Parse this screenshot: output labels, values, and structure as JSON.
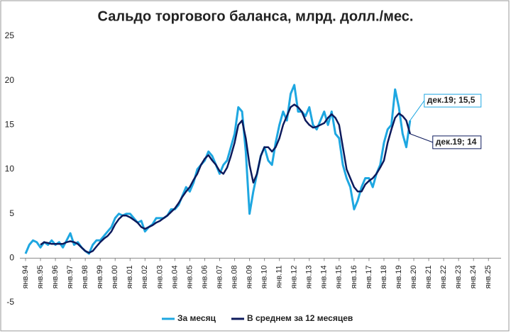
{
  "chart_data": {
    "type": "line",
    "title": "Сальдо торгового баланса, млрд. долл./мес.",
    "categories": [
      "янв.94",
      null,
      null,
      null,
      "янв.95",
      null,
      null,
      null,
      "янв.96",
      null,
      null,
      null,
      "янв.97",
      null,
      null,
      null,
      "янв.98",
      null,
      null,
      null,
      "янв.99",
      null,
      null,
      null,
      "янв.00",
      null,
      null,
      null,
      "янв.01",
      null,
      null,
      null,
      "янв.02",
      null,
      null,
      null,
      "янв.03",
      null,
      null,
      null,
      "янв.04",
      null,
      null,
      null,
      "янв.05",
      null,
      null,
      null,
      "янв.06",
      null,
      null,
      null,
      "янв.07",
      null,
      null,
      null,
      "янв.08",
      null,
      null,
      null,
      "янв.09",
      null,
      null,
      null,
      "янв.10",
      null,
      null,
      null,
      "янв.11",
      null,
      null,
      null,
      "янв.12",
      null,
      null,
      null,
      "янв.13",
      null,
      null,
      null,
      "янв.14",
      null,
      null,
      null,
      "янв.15",
      null,
      null,
      null,
      "янв.16",
      null,
      null,
      null,
      "янв.17",
      null,
      null,
      null,
      "янв.18",
      null,
      null,
      null,
      "янв.19",
      null,
      null,
      null,
      "янв.20",
      null,
      null,
      null,
      "янв.21",
      null,
      null,
      null,
      "янв.22",
      null,
      null,
      null,
      "янв.23",
      null,
      null,
      null,
      "янв.24",
      null,
      null,
      null,
      "янв.25",
      null,
      null,
      null
    ],
    "series": [
      {
        "name": "За месяц",
        "color": "#1ea7e1",
        "values": [
          0.5,
          1.5,
          2.0,
          1.8,
          1.2,
          1.8,
          1.5,
          2.0,
          1.5,
          1.8,
          1.2,
          2.0,
          2.8,
          1.5,
          1.8,
          1.2,
          0.8,
          0.5,
          1.5,
          2.0,
          2.0,
          2.5,
          3.0,
          3.5,
          4.5,
          5.0,
          4.8,
          5.0,
          5.0,
          4.5,
          4.0,
          4.2,
          3.0,
          3.5,
          3.8,
          4.5,
          4.5,
          4.5,
          4.8,
          5.5,
          5.5,
          6.0,
          7.0,
          8.0,
          7.5,
          8.5,
          10.0,
          10.5,
          11.0,
          12.0,
          11.5,
          10.5,
          9.5,
          10.5,
          11.0,
          12.5,
          14.0,
          17.0,
          16.5,
          12.0,
          5.0,
          7.5,
          9.5,
          11.5,
          12.5,
          11.0,
          10.5,
          13.0,
          15.0,
          16.5,
          15.5,
          18.5,
          19.5,
          16.5,
          16.5,
          16.0,
          17.0,
          15.0,
          14.5,
          15.5,
          16.5,
          15.0,
          16.5,
          14.0,
          13.5,
          10.5,
          9.0,
          8.0,
          5.5,
          6.5,
          8.0,
          9.0,
          9.0,
          8.0,
          9.5,
          10.5,
          13.0,
          14.5,
          15.0,
          19.0,
          17.0,
          14.0,
          12.5,
          15.5,
          null,
          null,
          null,
          null,
          null,
          null,
          null,
          null,
          null,
          null,
          null,
          null,
          null,
          null,
          null,
          null,
          null,
          null,
          null,
          null,
          null,
          null,
          null,
          null
        ]
      },
      {
        "name": "В среднем за 12 месяцев",
        "color": "#0d1a5c",
        "values": [
          null,
          null,
          null,
          null,
          1.5,
          1.8,
          1.7,
          1.6,
          1.6,
          1.6,
          1.6,
          1.8,
          1.9,
          1.8,
          1.6,
          1.2,
          0.8,
          0.6,
          0.8,
          1.3,
          1.8,
          2.2,
          2.5,
          3.0,
          3.8,
          4.4,
          4.8,
          4.8,
          4.6,
          4.3,
          4.0,
          3.5,
          3.3,
          3.5,
          3.7,
          4.0,
          4.2,
          4.5,
          4.8,
          5.2,
          5.6,
          6.2,
          6.9,
          7.5,
          8.0,
          8.8,
          9.5,
          10.5,
          11.2,
          11.6,
          11.0,
          10.5,
          9.8,
          9.5,
          10.2,
          11.5,
          13.0,
          15.0,
          15.5,
          13.5,
          10.5,
          8.5,
          9.5,
          11.5,
          12.5,
          12.5,
          12.0,
          12.5,
          13.5,
          15.0,
          16.0,
          17.0,
          17.3,
          17.0,
          16.5,
          15.5,
          15.0,
          14.7,
          14.8,
          15.0,
          15.2,
          15.8,
          16.2,
          15.8,
          15.0,
          12.5,
          10.0,
          9.0,
          8.0,
          7.5,
          7.5,
          8.3,
          8.7,
          9.0,
          9.5,
          10.2,
          11.0,
          13.0,
          14.5,
          15.8,
          16.3,
          16.0,
          15.5,
          14.0,
          null,
          null,
          null,
          null,
          null,
          null,
          null,
          null,
          null,
          null,
          null,
          null,
          null,
          null,
          null,
          null,
          null,
          null,
          null,
          null,
          null,
          null,
          null,
          null
        ]
      }
    ],
    "annotations": [
      "дек.19; 15,5",
      "дек.19; 14"
    ],
    "ylim": [
      -5,
      25
    ],
    "yticks": [
      -5,
      0,
      5,
      10,
      15,
      20,
      25
    ],
    "grid": false,
    "legend": "bottom"
  }
}
